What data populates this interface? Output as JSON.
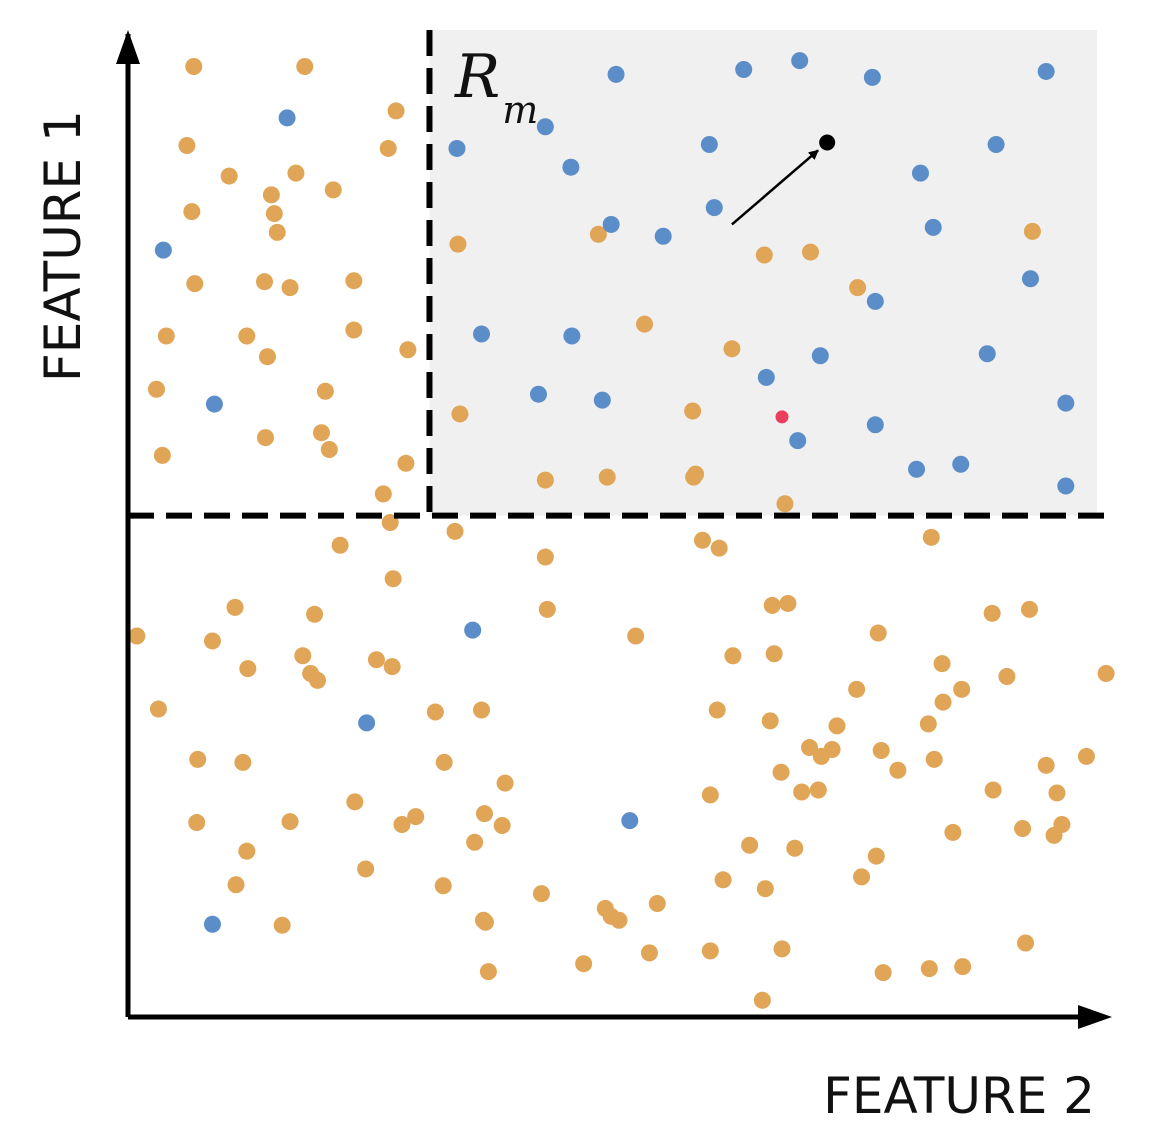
{
  "chart_data": {
    "type": "scatter",
    "title": "",
    "xlabel": "FEATURE 2",
    "ylabel": "FEATURE 1",
    "xlim": [
      0,
      100
    ],
    "ylim": [
      0,
      100
    ],
    "grid": false,
    "region": {
      "label_main": "R",
      "label_sub": "m",
      "x_range": [
        30.7,
        100
      ],
      "y_range": [
        50.8,
        100
      ],
      "fill": "#f0f0f0"
    },
    "splits": [
      {
        "axis": "x",
        "value": 30.7,
        "from": 50.8,
        "to": 100
      },
      {
        "axis": "y",
        "value": 50.8,
        "from": 0,
        "to": 100
      }
    ],
    "colors": {
      "orange": "#e0a556",
      "blue": "#5b8ec9",
      "red": "#e8405c",
      "query": "#000000",
      "axis": "#000000"
    },
    "annotation": {
      "type": "arrow",
      "from": [
        61.5,
        80.3
      ],
      "to": [
        71.2,
        88.6
      ],
      "point": [
        71.2,
        88.6
      ]
    },
    "series": [
      {
        "color_key": "orange",
        "points": [
          [
            6.7,
            96.3
          ],
          [
            18.0,
            96.3
          ],
          [
            27.3,
            91.8
          ],
          [
            6.0,
            88.3
          ],
          [
            26.5,
            88.0
          ],
          [
            10.3,
            85.2
          ],
          [
            17.1,
            85.5
          ],
          [
            20.9,
            83.8
          ],
          [
            14.6,
            83.3
          ],
          [
            6.5,
            81.6
          ],
          [
            14.9,
            81.4
          ],
          [
            15.2,
            79.5
          ],
          [
            6.8,
            74.3
          ],
          [
            13.9,
            74.5
          ],
          [
            16.5,
            73.9
          ],
          [
            23.0,
            74.6
          ],
          [
            3.9,
            69.0
          ],
          [
            12.1,
            69.0
          ],
          [
            23.0,
            69.6
          ],
          [
            14.2,
            66.9
          ],
          [
            28.5,
            67.6
          ],
          [
            2.9,
            63.6
          ],
          [
            20.1,
            63.4
          ],
          [
            14.0,
            58.7
          ],
          [
            19.7,
            59.2
          ],
          [
            3.5,
            56.9
          ],
          [
            20.5,
            57.5
          ],
          [
            28.3,
            56.1
          ],
          [
            26.0,
            53.0
          ],
          [
            33.6,
            78.3
          ],
          [
            47.9,
            79.3
          ],
          [
            64.8,
            77.2
          ],
          [
            69.5,
            77.5
          ],
          [
            92.1,
            79.6
          ],
          [
            74.3,
            73.9
          ],
          [
            52.6,
            70.2
          ],
          [
            61.5,
            67.7
          ],
          [
            33.8,
            61.1
          ],
          [
            57.5,
            61.4
          ],
          [
            57.8,
            55.0
          ],
          [
            42.5,
            54.4
          ],
          [
            48.8,
            54.7
          ],
          [
            57.6,
            54.7
          ],
          [
            66.9,
            52.0
          ],
          [
            26.7,
            50.1
          ],
          [
            33.3,
            49.2
          ],
          [
            21.6,
            47.8
          ],
          [
            42.5,
            46.6
          ],
          [
            58.5,
            48.3
          ],
          [
            60.2,
            47.5
          ],
          [
            81.8,
            48.6
          ],
          [
            27.0,
            44.4
          ],
          [
            10.9,
            41.5
          ],
          [
            19.0,
            40.8
          ],
          [
            42.7,
            41.3
          ],
          [
            65.6,
            41.7
          ],
          [
            67.2,
            41.9
          ],
          [
            88.0,
            40.9
          ],
          [
            91.8,
            41.3
          ],
          [
            0.9,
            38.6
          ],
          [
            8.6,
            38.1
          ],
          [
            51.7,
            38.6
          ],
          [
            17.8,
            36.6
          ],
          [
            61.6,
            36.6
          ],
          [
            65.8,
            36.8
          ],
          [
            76.4,
            38.9
          ],
          [
            18.6,
            34.8
          ],
          [
            25.3,
            36.2
          ],
          [
            26.9,
            35.5
          ],
          [
            82.9,
            35.8
          ],
          [
            12.2,
            35.3
          ],
          [
            19.3,
            34.1
          ],
          [
            89.5,
            34.5
          ],
          [
            74.2,
            33.2
          ],
          [
            3.1,
            31.2
          ],
          [
            31.3,
            30.9
          ],
          [
            36.0,
            31.1
          ],
          [
            60.0,
            31.1
          ],
          [
            65.4,
            30.0
          ],
          [
            72.2,
            29.5
          ],
          [
            81.5,
            29.7
          ],
          [
            83.0,
            31.9
          ],
          [
            84.9,
            33.2
          ],
          [
            99.6,
            34.8
          ],
          [
            71.7,
            27.1
          ],
          [
            66.5,
            24.8
          ],
          [
            7.1,
            26.1
          ],
          [
            11.7,
            25.8
          ],
          [
            32.2,
            25.8
          ],
          [
            70.6,
            26.4
          ],
          [
            76.7,
            27.0
          ],
          [
            69.4,
            27.3
          ],
          [
            82.1,
            26.1
          ],
          [
            93.5,
            25.5
          ],
          [
            97.6,
            26.4
          ],
          [
            38.4,
            23.7
          ],
          [
            59.3,
            22.5
          ],
          [
            68.6,
            22.8
          ],
          [
            70.3,
            23.0
          ],
          [
            78.4,
            25.0
          ],
          [
            88.1,
            23.0
          ],
          [
            94.6,
            22.7
          ],
          [
            7.0,
            19.7
          ],
          [
            23.1,
            21.8
          ],
          [
            29.3,
            20.3
          ],
          [
            27.9,
            19.5
          ],
          [
            16.5,
            19.8
          ],
          [
            36.3,
            20.6
          ],
          [
            38.1,
            19.4
          ],
          [
            35.3,
            17.7
          ],
          [
            12.1,
            16.8
          ],
          [
            91.1,
            19.1
          ],
          [
            95.1,
            19.5
          ],
          [
            94.3,
            18.4
          ],
          [
            84.0,
            18.7
          ],
          [
            74.7,
            14.2
          ],
          [
            63.3,
            17.4
          ],
          [
            67.9,
            17.1
          ],
          [
            60.6,
            13.9
          ],
          [
            76.2,
            16.3
          ],
          [
            24.2,
            15.0
          ],
          [
            11.0,
            13.4
          ],
          [
            32.1,
            13.3
          ],
          [
            42.1,
            12.5
          ],
          [
            53.9,
            11.5
          ],
          [
            64.9,
            13.0
          ],
          [
            48.6,
            11.0
          ],
          [
            50.0,
            9.8
          ],
          [
            36.2,
            9.8
          ],
          [
            15.7,
            9.3
          ],
          [
            36.4,
            9.6
          ],
          [
            49.2,
            10.2
          ],
          [
            91.4,
            7.5
          ],
          [
            53.1,
            6.5
          ],
          [
            66.6,
            6.9
          ],
          [
            59.3,
            6.7
          ],
          [
            46.4,
            5.4
          ],
          [
            85.0,
            5.1
          ],
          [
            76.9,
            4.5
          ],
          [
            81.6,
            4.9
          ],
          [
            36.7,
            4.6
          ],
          [
            64.6,
            1.7
          ]
        ]
      },
      {
        "color_key": "blue",
        "points": [
          [
            16.2,
            91.1
          ],
          [
            3.6,
            77.7
          ],
          [
            8.8,
            62.1
          ],
          [
            49.7,
            95.5
          ],
          [
            62.7,
            96.0
          ],
          [
            68.4,
            96.9
          ],
          [
            75.8,
            95.2
          ],
          [
            93.5,
            95.8
          ],
          [
            42.5,
            90.2
          ],
          [
            33.5,
            88.0
          ],
          [
            59.2,
            88.4
          ],
          [
            88.4,
            88.4
          ],
          [
            45.1,
            86.1
          ],
          [
            80.7,
            85.5
          ],
          [
            59.7,
            82.0
          ],
          [
            82.0,
            80.0
          ],
          [
            49.2,
            80.3
          ],
          [
            54.5,
            79.1
          ],
          [
            91.9,
            74.8
          ],
          [
            76.1,
            72.5
          ],
          [
            36.0,
            69.2
          ],
          [
            45.2,
            69.0
          ],
          [
            70.5,
            67.0
          ],
          [
            87.5,
            67.2
          ],
          [
            65.0,
            64.8
          ],
          [
            41.8,
            63.1
          ],
          [
            48.3,
            62.5
          ],
          [
            95.5,
            62.2
          ],
          [
            76.1,
            60.0
          ],
          [
            68.2,
            58.4
          ],
          [
            80.3,
            55.5
          ],
          [
            84.8,
            56.0
          ],
          [
            95.5,
            53.8
          ],
          [
            35.1,
            39.2
          ],
          [
            24.3,
            29.8
          ],
          [
            51.1,
            19.9
          ],
          [
            8.6,
            9.4
          ]
        ]
      },
      {
        "color_key": "red",
        "points": [
          [
            66.6,
            60.8
          ]
        ]
      }
    ]
  }
}
